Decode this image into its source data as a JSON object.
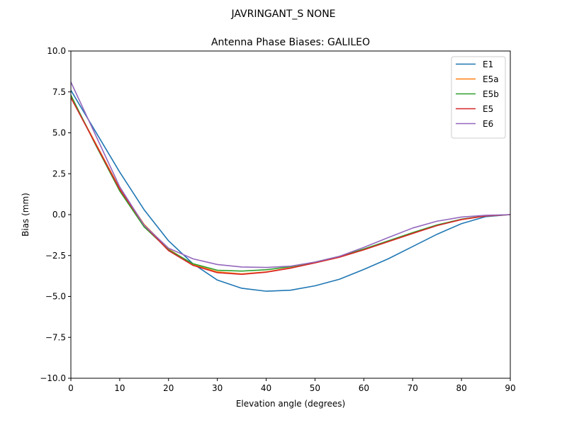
{
  "chart_data": {
    "type": "line",
    "suptitle": "JAVRINGANT_S    NONE",
    "title": "Antenna Phase Biases: GALILEO",
    "xlabel": "Elevation angle (degrees)",
    "ylabel": "Bias (mm)",
    "xlim": [
      0,
      90
    ],
    "ylim": [
      -10,
      10
    ],
    "xticks": [
      0,
      10,
      20,
      30,
      40,
      50,
      60,
      70,
      80,
      90
    ],
    "xtick_labels": [
      "0",
      "10",
      "20",
      "30",
      "40",
      "50",
      "60",
      "70",
      "80",
      "90"
    ],
    "yticks": [
      -10,
      -7.5,
      -5,
      -2.5,
      0,
      2.5,
      5,
      7.5,
      10
    ],
    "ytick_labels": [
      "−10.0",
      "−7.5",
      "−5.0",
      "−2.5",
      "0.0",
      "2.5",
      "5.0",
      "7.5",
      "10.0"
    ],
    "grid": false,
    "legend_position": "top-right",
    "x": [
      0,
      5,
      10,
      15,
      20,
      25,
      30,
      35,
      40,
      45,
      50,
      55,
      60,
      65,
      70,
      75,
      80,
      85,
      90
    ],
    "series": [
      {
        "name": "E1",
        "color": "#1f77b4",
        "values": [
          7.6,
          5.1,
          2.6,
          0.3,
          -1.6,
          -3.0,
          -4.0,
          -4.5,
          -4.68,
          -4.62,
          -4.35,
          -3.95,
          -3.35,
          -2.7,
          -1.95,
          -1.2,
          -0.55,
          -0.12,
          0.0
        ]
      },
      {
        "name": "E5a",
        "color": "#ff7f0e",
        "values": [
          7.2,
          4.4,
          1.6,
          -0.6,
          -2.1,
          -3.05,
          -3.5,
          -3.62,
          -3.5,
          -3.25,
          -2.95,
          -2.6,
          -2.15,
          -1.65,
          -1.15,
          -0.65,
          -0.3,
          -0.08,
          0.0
        ]
      },
      {
        "name": "E5b",
        "color": "#2ca02c",
        "values": [
          7.3,
          4.3,
          1.45,
          -0.75,
          -2.15,
          -3.0,
          -3.4,
          -3.45,
          -3.37,
          -3.18,
          -2.9,
          -2.55,
          -2.1,
          -1.6,
          -1.1,
          -0.63,
          -0.28,
          -0.07,
          0.0
        ]
      },
      {
        "name": "E5",
        "color": "#d62728",
        "values": [
          7.15,
          4.35,
          1.55,
          -0.65,
          -2.2,
          -3.1,
          -3.55,
          -3.65,
          -3.52,
          -3.27,
          -2.95,
          -2.6,
          -2.15,
          -1.65,
          -1.15,
          -0.67,
          -0.3,
          -0.08,
          0.0
        ]
      },
      {
        "name": "E6",
        "color": "#9467bd",
        "values": [
          8.1,
          4.9,
          1.7,
          -0.65,
          -2.05,
          -2.7,
          -3.05,
          -3.2,
          -3.23,
          -3.15,
          -2.9,
          -2.55,
          -2.0,
          -1.4,
          -0.82,
          -0.4,
          -0.15,
          -0.04,
          0.0
        ]
      }
    ]
  }
}
